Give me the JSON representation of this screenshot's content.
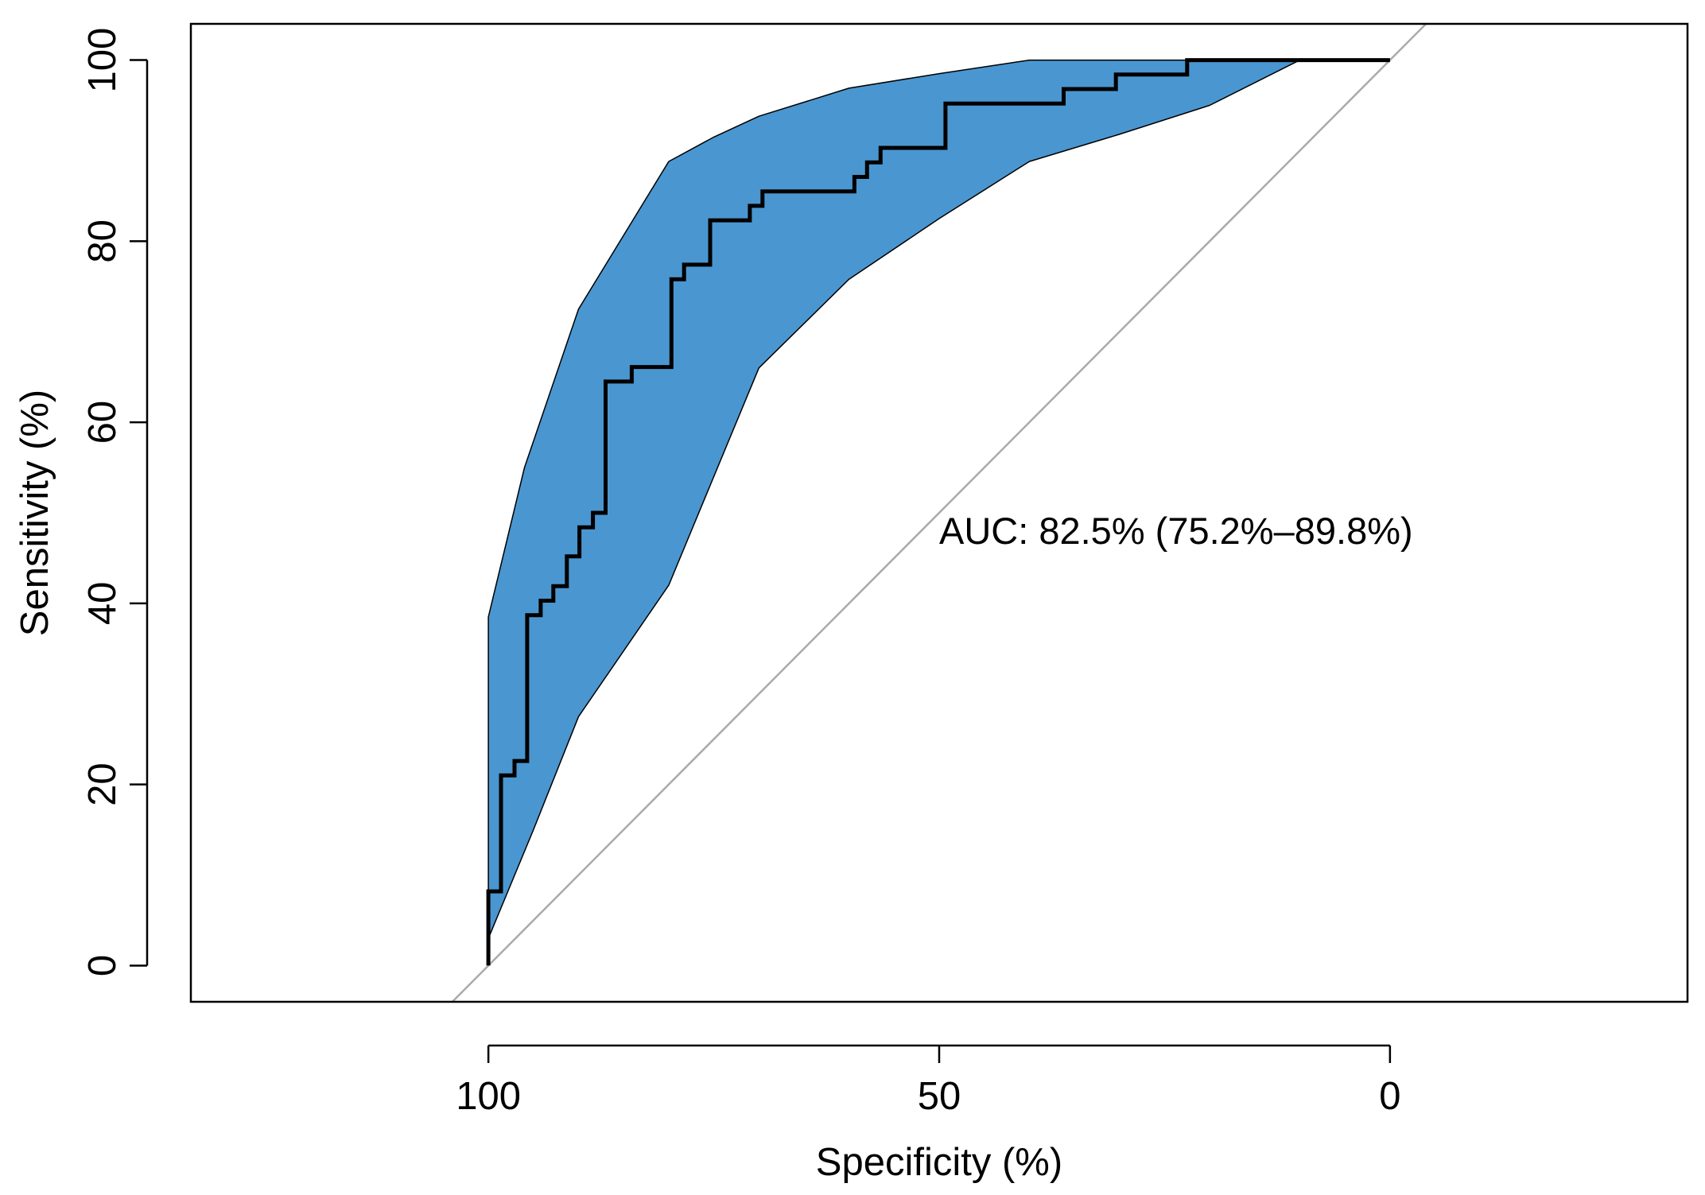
{
  "chart_data": {
    "type": "line",
    "title": "",
    "xlabel": "Specificity (%)",
    "ylabel": "Sensitivity (%)",
    "xlim": [
      133,
      -33
    ],
    "ylim": [
      -4,
      104
    ],
    "x_reversed": true,
    "x_ticks": [
      100,
      50,
      0
    ],
    "y_ticks": [
      0,
      20,
      40,
      60,
      80,
      100
    ],
    "annotation": "AUC: 82.5% (75.2%–89.8%)",
    "annotation_position": {
      "specificity": 50,
      "sensitivity": 48
    },
    "colors": {
      "ci_fill": "#4A96D0",
      "ci_stroke": "#000000",
      "roc_line": "#000000",
      "diagonal": "#AAAAAA",
      "frame": "#000000"
    },
    "series": [
      {
        "name": "ROC curve",
        "specificity": [
          100,
          100,
          98.6,
          98.6,
          97.1,
          97.1,
          95.7,
          95.7,
          94.2,
          94.2,
          92.8,
          92.8,
          91.3,
          91.3,
          89.9,
          89.9,
          88.4,
          88.4,
          87,
          87,
          84.1,
          84.1,
          79.7,
          79.7,
          78.3,
          78.3,
          75.4,
          75.4,
          71,
          71,
          69.6,
          69.6,
          65.2,
          65.2,
          59.4,
          59.4,
          58,
          58,
          56.5,
          56.5,
          55.1,
          55.1,
          49.3,
          49.3,
          36.2,
          36.2,
          30.4,
          30.4,
          22.5,
          22.5,
          0
        ],
        "sensitivity": [
          0,
          8.2,
          8.2,
          21,
          21,
          22.6,
          22.6,
          38.7,
          38.7,
          40.3,
          40.3,
          41.9,
          41.9,
          45.2,
          45.2,
          48.4,
          48.4,
          50,
          50,
          64.5,
          64.5,
          66.1,
          66.1,
          75.8,
          75.8,
          77.4,
          77.4,
          82.3,
          82.3,
          83.9,
          83.9,
          85.5,
          85.5,
          85.5,
          85.5,
          87.1,
          87.1,
          88.7,
          88.7,
          90.3,
          90.3,
          90.3,
          90.3,
          95.2,
          95.2,
          96.8,
          96.8,
          98.4,
          98.4,
          100,
          100
        ]
      },
      {
        "name": "CI upper",
        "specificity": [
          100,
          96,
          90,
          80,
          75,
          70,
          60,
          50,
          40,
          30,
          20,
          10,
          0
        ],
        "sensitivity": [
          38.5,
          55,
          72.5,
          88.8,
          91.5,
          93.8,
          96.9,
          98.5,
          100,
          100,
          100,
          100,
          100
        ]
      },
      {
        "name": "CI lower",
        "specificity": [
          100,
          95,
          90,
          80,
          70,
          60,
          50,
          40,
          30,
          20,
          10,
          0
        ],
        "sensitivity": [
          3,
          15,
          27.5,
          42,
          66,
          75.8,
          82.5,
          88.8,
          91.8,
          95,
          100,
          100
        ]
      },
      {
        "name": "Chance line",
        "specificity": [
          104,
          -4
        ],
        "sensitivity": [
          -4,
          104
        ]
      }
    ]
  }
}
